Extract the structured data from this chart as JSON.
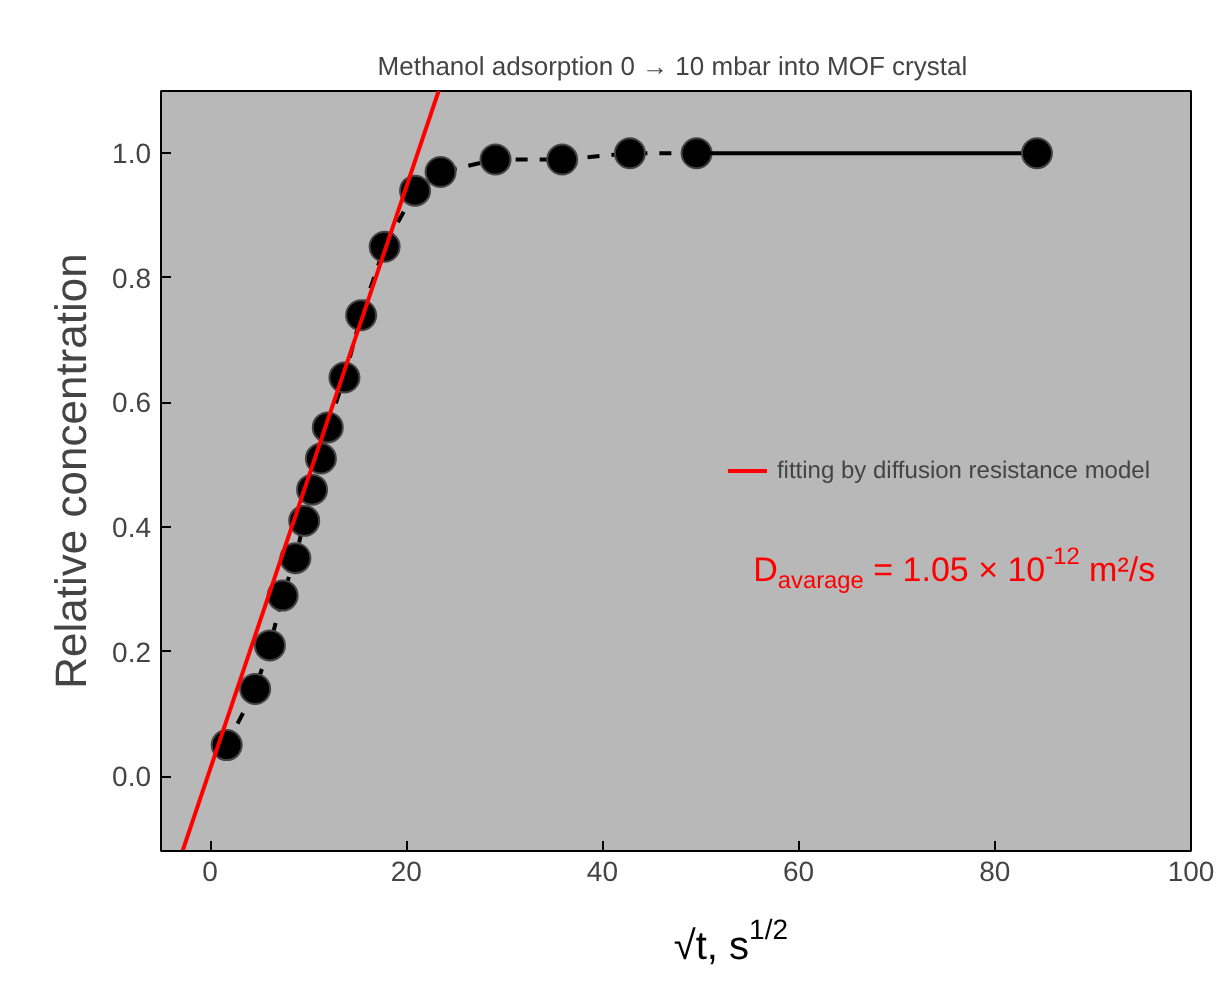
{
  "chart_data": {
    "type": "line",
    "title": "Methanol adsorption 0 → 10 mbar into  MOF crystal",
    "xlabel": "√t, s$^{1/2}$",
    "ylabel": "Relative concentration",
    "xlim": [
      -5,
      100
    ],
    "ylim": [
      -0.12,
      1.1
    ],
    "xticks": [
      0,
      20,
      40,
      60,
      80,
      100
    ],
    "yticks": [
      {
        "value": 0,
        "label": "0.0"
      },
      {
        "value": 0.2,
        "label": "0.2"
      },
      {
        "value": 0.4,
        "label": "0.4"
      },
      {
        "value": 0.6,
        "label": "0.6"
      },
      {
        "value": 0.8,
        "label": "0.8"
      },
      {
        "value": 1.0,
        "label": "1.0"
      }
    ],
    "grid": false,
    "legend": "right",
    "series": [
      {
        "color": "#000000",
        "marker": "circle",
        "line_style": "dashed",
        "x": [
          1.7,
          4.6,
          6.1,
          7.4,
          8.7,
          9.6,
          10.4,
          11.3,
          12.0,
          13.7,
          15.4,
          17.8,
          20.9,
          23.5,
          29.1,
          35.9,
          42.8,
          49.6
        ],
        "values": [
          0.05,
          0.14,
          0.21,
          0.29,
          0.35,
          0.41,
          0.46,
          0.51,
          0.56,
          0.64,
          0.74,
          0.85,
          0.94,
          0.97,
          0.99,
          0.99,
          1.0,
          1.0
        ]
      },
      {
        "color": "#000000",
        "marker": "none",
        "line_style": "solid",
        "x": [
          49.6,
          84.3
        ],
        "values": [
          1.0,
          1.0
        ]
      },
      {
        "type": "scatter",
        "color": "#000000",
        "marker": "circle",
        "x": [
          84.3
        ],
        "values": [
          1.0
        ]
      },
      {
        "name": "fitting by diffusion resistance model",
        "color": "#ff0000",
        "marker": "none",
        "line_style": "solid",
        "x": [
          -2.8,
          23.3
        ],
        "values": [
          -0.12,
          1.1
        ]
      }
    ],
    "annotations": [
      "D$_{avarage}$ = 1.05 × 10$^{-12}$ m²/s"
    ]
  }
}
